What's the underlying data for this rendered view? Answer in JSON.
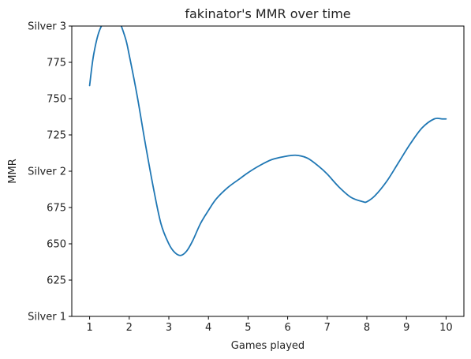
{
  "chart_data": {
    "type": "line",
    "title": "fakinator's MMR over time",
    "xlabel": "Games played",
    "ylabel": "MMR",
    "xlim": [
      0.55,
      10.45
    ],
    "ylim": [
      600,
      800
    ],
    "x_ticks": [
      {
        "value": 1,
        "label": "1"
      },
      {
        "value": 2,
        "label": "2"
      },
      {
        "value": 3,
        "label": "3"
      },
      {
        "value": 4,
        "label": "4"
      },
      {
        "value": 5,
        "label": "5"
      },
      {
        "value": 6,
        "label": "6"
      },
      {
        "value": 7,
        "label": "7"
      },
      {
        "value": 8,
        "label": "8"
      },
      {
        "value": 9,
        "label": "9"
      },
      {
        "value": 10,
        "label": "10"
      }
    ],
    "y_ticks": [
      {
        "value": 600,
        "label": "Silver 1"
      },
      {
        "value": 625,
        "label": "625"
      },
      {
        "value": 650,
        "label": "650"
      },
      {
        "value": 675,
        "label": "675"
      },
      {
        "value": 700,
        "label": "Silver 2"
      },
      {
        "value": 725,
        "label": "725"
      },
      {
        "value": 750,
        "label": "750"
      },
      {
        "value": 775,
        "label": "775"
      },
      {
        "value": 800,
        "label": "Silver 3"
      }
    ],
    "grid": false,
    "series": [
      {
        "color": "#1f77b4",
        "x": [
          1.0,
          1.1,
          1.25,
          1.5,
          1.7,
          1.9,
          2.0,
          2.2,
          2.4,
          2.6,
          2.8,
          3.0,
          3.15,
          3.3,
          3.45,
          3.6,
          3.8,
          4.0,
          4.2,
          4.5,
          4.8,
          5.0,
          5.3,
          5.6,
          5.9,
          6.2,
          6.5,
          6.8,
          7.0,
          7.3,
          7.6,
          7.9,
          8.0,
          8.2,
          8.5,
          8.8,
          9.1,
          9.4,
          9.7,
          9.9,
          10.0
        ],
        "y": [
          759,
          780,
          797,
          808,
          806,
          792,
          780,
          752,
          720,
          690,
          664,
          650,
          644,
          642,
          645,
          652,
          664,
          673,
          681,
          689,
          695,
          699,
          704,
          708,
          710,
          711,
          709,
          703,
          698,
          689,
          682,
          679,
          679,
          683,
          693,
          706,
          719,
          730,
          736,
          736,
          736
        ]
      }
    ]
  }
}
